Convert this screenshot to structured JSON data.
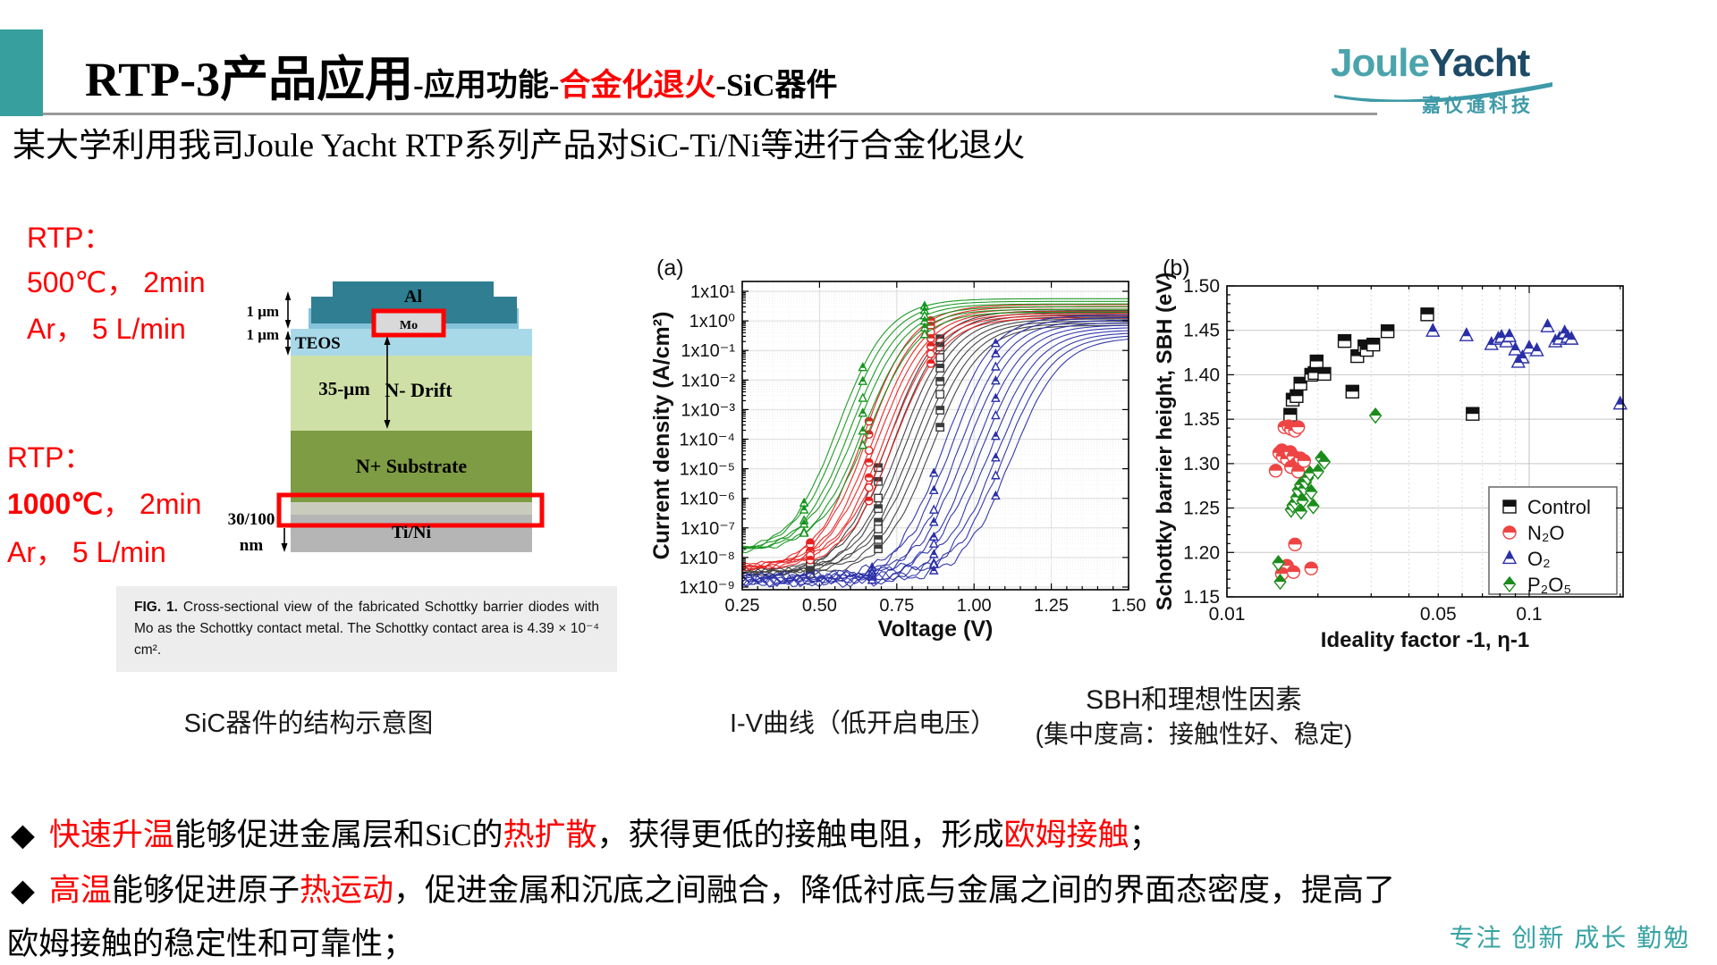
{
  "header": {
    "accent_color": "#389f9f",
    "title_main": "RTP-3产品应用",
    "title_seg1": "-应用功能-",
    "title_red": "合金化退火",
    "title_seg2": "-SiC器件"
  },
  "logo": {
    "part1": "Joule",
    "part2": "Yacht",
    "part1_color": "#4ba4ac",
    "part2_color": "#1d4a66",
    "cn": "嘉仪通科技"
  },
  "subtitle": "某大学利用我司Joule Yacht RTP系列产品对SiC-Ti/Ni等进行合金化退火",
  "rtp_blocks": [
    {
      "l1": "RTP：",
      "l2": [
        {
          "t": "500℃， 2min"
        }
      ],
      "l3": "Ar， 5 L/min"
    },
    {
      "l1": "RTP：",
      "l2": [
        {
          "t": "1000℃",
          "b": true
        },
        {
          "t": "， 2min"
        }
      ],
      "l3": "Ar， 5 L/min"
    }
  ],
  "diagram": {
    "al": "Al",
    "mo": "Mo",
    "teos": "TEOS",
    "dim_top1": "1 μm",
    "dim_top2": "1 μm",
    "drift_dim": "35-μm",
    "drift": "N- Drift",
    "substrate": "N+ Substrate",
    "dim_bottom1": "30/100",
    "dim_bottom2": "nm",
    "tini": "Ti/Ni",
    "colors": {
      "al": "#2f7e92",
      "teos_base": "#a8d9e9",
      "teos_mesa": "#85c3da",
      "mo": "#d9d9d9",
      "drift": "#cfe0a6",
      "substrate": "#7e9c43",
      "interface": "#c9ccbd",
      "tini": "#b5b5b5",
      "highlight": "#ff0000"
    }
  },
  "fig_caption": [
    {
      "t": "FIG. 1.",
      "b": true
    },
    {
      "t": " Cross-sectional view of the fabricated Schottky barrier diodes with Mo as the Schottky contact metal. The Schottky contact area is 4.39 × 10⁻⁴ cm²."
    }
  ],
  "captions": {
    "left": "SiC器件的结构示意图",
    "middle": "I-V曲线（低开启电压）",
    "right_line1": "SBH和理想性因素",
    "right_line2": "(集中度高：接触性好、稳定)"
  },
  "bullets": {
    "marker": "◆",
    "line1": [
      {
        "t": "快速升温",
        "red": true
      },
      {
        "t": "能够促进金属层和SiC的"
      },
      {
        "t": "热扩散",
        "red": true
      },
      {
        "t": "，获得更低的接触电阻，形成"
      },
      {
        "t": "欧姆接触",
        "red": true
      },
      {
        "t": "；"
      }
    ],
    "line2": [
      {
        "t": "高温",
        "red": true
      },
      {
        "t": "能够促进原子"
      },
      {
        "t": "热运动",
        "red": true
      },
      {
        "t": "，促进金属和沉底之间融合，降低衬底与金属之间的界面态密度，提高了"
      }
    ],
    "line3": [
      {
        "t": "欧姆接触的稳定性和可靠性；"
      }
    ]
  },
  "footer": {
    "text": "专注 创新 成长 勤勉",
    "color": "#38a3a3"
  },
  "chart_data": [
    {
      "type": "line",
      "panel": "(a)",
      "xlabel": "Voltage (V)",
      "ylabel": "Current density (A/cm²)",
      "xlim": [
        0.25,
        1.5
      ],
      "ylog_lim": [
        -9,
        1
      ],
      "x_ticks": [
        0.25,
        0.5,
        0.75,
        1.0,
        1.25,
        1.5
      ],
      "x_tick_labels": [
        "0.25",
        "0.50",
        "0.75",
        "1.00",
        "1.25",
        "1.50"
      ],
      "y_tick_exponents": [
        1,
        0,
        -1,
        -2,
        -3,
        -4,
        -5,
        -6,
        -7,
        -8,
        -9
      ],
      "y_tick_labels": [
        "1x10¹",
        "1x10⁰",
        "1x10⁻¹",
        "1x10⁻²",
        "1x10⁻³",
        "1x10⁻⁴",
        "1x10⁻⁵",
        "1x10⁻⁶",
        "1x10⁻⁷",
        "1x10⁻⁸",
        "1x10⁻⁹"
      ],
      "grid": true,
      "series": [
        {
          "name": "Control",
          "color": "#3c3c3c",
          "marker": "square",
          "n": 8,
          "vmid_range": [
            0.72,
            0.86
          ],
          "log_top_range": [
            0.35,
            -0.15
          ],
          "log_floor": -8.5,
          "noise": 0.06,
          "marker_voltages": [
            0.47,
            0.69,
            0.89
          ]
        },
        {
          "name": "N2O",
          "color": "#e62322",
          "marker": "circle",
          "n": 7,
          "vmid_range": [
            0.64,
            0.74
          ],
          "log_top_range": [
            0.55,
            0.1
          ],
          "log_floor": -8.35,
          "noise": 0.06,
          "marker_voltages": [
            0.47,
            0.66,
            0.86
          ]
        },
        {
          "name": "P2O5",
          "color": "#14961e",
          "marker": "triangle",
          "n": 6,
          "vmid_range": [
            0.56,
            0.66
          ],
          "log_top_range": [
            0.75,
            0.3
          ],
          "log_floor": -7.8,
          "noise": 0.05,
          "marker_voltages": [
            0.45,
            0.64,
            0.84
          ]
        },
        {
          "name": "O2",
          "color": "#2a2fa8",
          "marker": "triangle",
          "n": 10,
          "vmid_range": [
            0.9,
            1.12
          ],
          "log_top_range": [
            0.2,
            -0.55
          ],
          "log_floor": -8.72,
          "noise": 0.13,
          "marker_voltages": [
            0.67,
            0.87,
            1.07
          ]
        }
      ]
    },
    {
      "type": "scatter",
      "panel": "(b)",
      "xlabel": "Ideality factor -1, η-1",
      "ylabel": "Schottky barrier height, SBH (eV)",
      "xscale": "log",
      "xlim": [
        0.01,
        0.205
      ],
      "ylim": [
        1.15,
        1.5
      ],
      "x_ticks": [
        0.01,
        0.05,
        0.1
      ],
      "x_tick_labels": [
        "0.01",
        "0.05",
        "0.1"
      ],
      "y_ticks": [
        1.15,
        1.2,
        1.25,
        1.3,
        1.35,
        1.4,
        1.45,
        1.5
      ],
      "legend_position": "lower-right",
      "series": [
        {
          "name": "Control",
          "label": "Control",
          "marker": "square",
          "color": "#111111",
          "points": [
            [
              0.0162,
              1.355
            ],
            [
              0.0165,
              1.372
            ],
            [
              0.017,
              1.376
            ],
            [
              0.0175,
              1.39
            ],
            [
              0.019,
              1.4
            ],
            [
              0.0195,
              1.402
            ],
            [
              0.0198,
              1.415
            ],
            [
              0.021,
              1.401
            ],
            [
              0.0245,
              1.438
            ],
            [
              0.026,
              1.381
            ],
            [
              0.027,
              1.421
            ],
            [
              0.0285,
              1.432
            ],
            [
              0.029,
              1.428
            ],
            [
              0.0305,
              1.434
            ],
            [
              0.034,
              1.449
            ],
            [
              0.046,
              1.468
            ],
            [
              0.065,
              1.356
            ]
          ]
        },
        {
          "name": "N2O",
          "label": "N₂O",
          "marker": "circle",
          "color": "#ee4444",
          "points": [
            [
              0.0152,
              1.315
            ],
            [
              0.0155,
              1.341
            ],
            [
              0.016,
              1.342
            ],
            [
              0.0163,
              1.339
            ],
            [
              0.0168,
              1.337
            ],
            [
              0.0172,
              1.341
            ],
            [
              0.0149,
              1.312
            ],
            [
              0.0153,
              1.308
            ],
            [
              0.0158,
              1.305
            ],
            [
              0.0162,
              1.313
            ],
            [
              0.0166,
              1.308
            ],
            [
              0.017,
              1.3
            ],
            [
              0.0175,
              1.306
            ],
            [
              0.0145,
              1.292
            ],
            [
              0.0163,
              1.296
            ],
            [
              0.0172,
              1.291
            ],
            [
              0.018,
              1.303
            ],
            [
              0.0168,
              1.209
            ],
            [
              0.0158,
              1.185
            ],
            [
              0.0152,
              1.176
            ],
            [
              0.0166,
              1.178
            ],
            [
              0.019,
              1.182
            ]
          ]
        },
        {
          "name": "O2",
          "label": "O₂",
          "marker": "triangle",
          "color": "#2a2fa8",
          "points": [
            [
              0.048,
              1.449
            ],
            [
              0.062,
              1.444
            ],
            [
              0.075,
              1.434
            ],
            [
              0.079,
              1.44
            ],
            [
              0.081,
              1.442
            ],
            [
              0.084,
              1.437
            ],
            [
              0.086,
              1.443
            ],
            [
              0.09,
              1.428
            ],
            [
              0.095,
              1.419
            ],
            [
              0.092,
              1.414
            ],
            [
              0.1,
              1.43
            ],
            [
              0.106,
              1.427
            ],
            [
              0.115,
              1.454
            ],
            [
              0.122,
              1.437
            ],
            [
              0.126,
              1.44
            ],
            [
              0.131,
              1.447
            ],
            [
              0.134,
              1.442
            ],
            [
              0.138,
              1.44
            ],
            [
              0.2,
              1.367
            ]
          ]
        },
        {
          "name": "P2O5",
          "label": "P₂O₅",
          "marker": "diamond",
          "color": "#1b8c1b",
          "points": [
            [
              0.0148,
              1.188
            ],
            [
              0.015,
              1.167
            ],
            [
              0.0163,
              1.248
            ],
            [
              0.0165,
              1.253
            ],
            [
              0.0168,
              1.256
            ],
            [
              0.017,
              1.262
            ],
            [
              0.0172,
              1.27
            ],
            [
              0.0175,
              1.276
            ],
            [
              0.0178,
              1.258
            ],
            [
              0.018,
              1.272
            ],
            [
              0.0182,
              1.279
            ],
            [
              0.0185,
              1.284
            ],
            [
              0.0188,
              1.289
            ],
            [
              0.019,
              1.268
            ],
            [
              0.0193,
              1.252
            ],
            [
              0.0176,
              1.246
            ],
            [
              0.02,
              1.291
            ],
            [
              0.0205,
              1.306
            ],
            [
              0.021,
              1.302
            ],
            [
              0.031,
              1.354
            ]
          ]
        }
      ]
    }
  ]
}
